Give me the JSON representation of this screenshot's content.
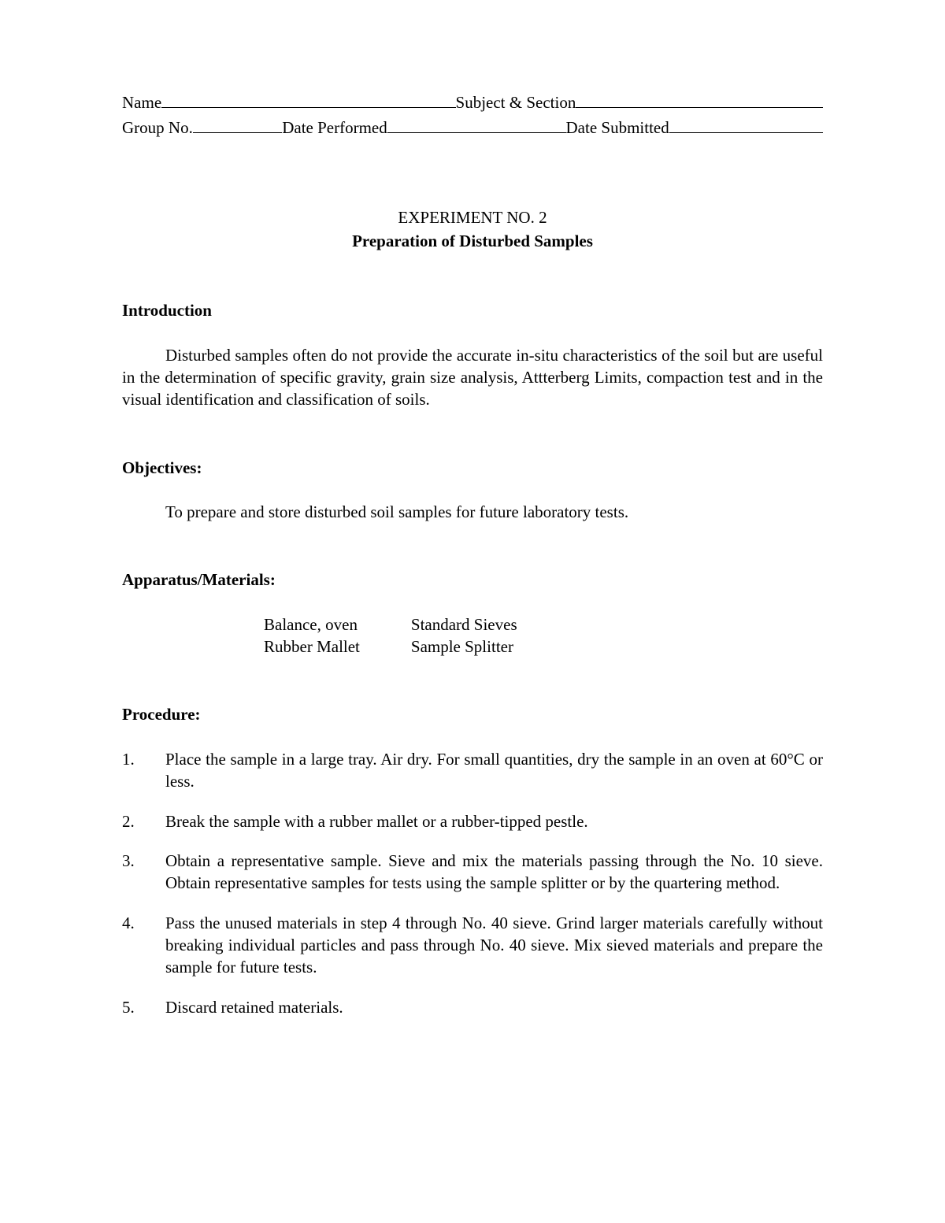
{
  "header": {
    "name": "Name",
    "subject": "Subject & Section",
    "group": "Group No.",
    "datePerformed": "Date Performed",
    "dateSubmitted": "Date Submitted"
  },
  "title": {
    "experimentNo": "EXPERIMENT NO. 2",
    "experimentTitle": "Preparation of Disturbed Samples"
  },
  "sections": {
    "introduction": {
      "heading": "Introduction",
      "text": "Disturbed samples often do not provide the accurate in-situ characteristics of the soil but are useful in the determination of specific gravity, grain size analysis, Attterberg Limits, compaction test and in the visual identification and classification of soils."
    },
    "objectives": {
      "heading": "Objectives:",
      "text": "To prepare and store disturbed soil samples for future laboratory tests."
    },
    "apparatus": {
      "heading": "Apparatus/Materials:",
      "col1": {
        "item1": "Balance, oven",
        "item2": "Rubber Mallet"
      },
      "col2": {
        "item1": "Standard Sieves",
        "item2": "Sample Splitter"
      }
    },
    "procedure": {
      "heading": "Procedure:",
      "items": {
        "0": {
          "num": "1.",
          "text": "Place the sample in a large tray. Air dry. For small quantities, dry the sample in an oven at 60°C or less."
        },
        "1": {
          "num": "2.",
          "text": "Break the sample with a rubber mallet or a rubber-tipped pestle."
        },
        "2": {
          "num": "3.",
          "text": "Obtain a representative sample. Sieve and mix the materials passing through the No. 10 sieve. Obtain representative samples for tests using the sample splitter or by the quartering method."
        },
        "3": {
          "num": "4.",
          "text": "Pass the unused materials in step 4 through No. 40 sieve. Grind larger materials carefully without breaking individual particles and pass through No. 40 sieve. Mix sieved materials and prepare the sample for future tests."
        },
        "4": {
          "num": "5.",
          "text": "Discard retained materials."
        }
      }
    }
  }
}
